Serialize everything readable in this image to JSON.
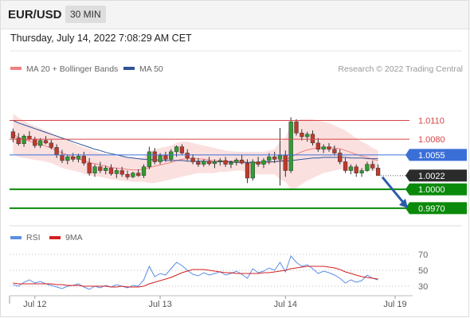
{
  "header": {
    "symbol": "EUR/USD",
    "interval": "30 MIN"
  },
  "datetime": "Thursday, July 14, 2022 7:08:29 AM CET",
  "legend": {
    "ma20": {
      "label": "MA 20 + Bollinger Bands",
      "color": "#f08080"
    },
    "ma50": {
      "label": "MA 50",
      "color": "#2f5597"
    },
    "credit": "Research © 2022 Trading Central"
  },
  "colors": {
    "up": "#2f9e2f",
    "down": "#c0392b",
    "band": "#fadada",
    "support": "#0a8a0a",
    "pivot": "#3b6fd8",
    "resistance": "#d64545",
    "current": "#2b2b2b",
    "arrow": "#2a5caa"
  },
  "chart_data": [
    {
      "type": "candlestick",
      "ylim": [
        0.9952,
        1.015
      ],
      "x_ticks": [
        "Jul 12",
        "Jul 13",
        "Jul 14",
        "Jul 19"
      ],
      "current_price": "1.0022",
      "levels": [
        {
          "label": "1.0110",
          "value": 1.011,
          "kind": "resistance"
        },
        {
          "label": "1.0080",
          "value": 1.008,
          "kind": "resistance"
        },
        {
          "label": "1.0055",
          "value": 1.0055,
          "kind": "pivot"
        },
        {
          "label": "1.0000",
          "value": 1.0,
          "kind": "support"
        },
        {
          "label": "0.9970",
          "value": 0.997,
          "kind": "support"
        }
      ],
      "forecast_arrow": {
        "from": 1.0022,
        "to": 0.997
      },
      "ohlc": [
        [
          1.0092,
          1.0097,
          1.0075,
          1.0082
        ],
        [
          1.0082,
          1.009,
          1.007,
          1.0073
        ],
        [
          1.0073,
          1.0088,
          1.0068,
          1.0085
        ],
        [
          1.0085,
          1.0093,
          1.0078,
          1.008
        ],
        [
          1.008,
          1.0084,
          1.0066,
          1.007
        ],
        [
          1.007,
          1.0082,
          1.0066,
          1.0078
        ],
        [
          1.0078,
          1.0085,
          1.0072,
          1.0074
        ],
        [
          1.0074,
          1.0079,
          1.0064,
          1.0067
        ],
        [
          1.0067,
          1.0072,
          1.005,
          1.0055
        ],
        [
          1.0055,
          1.0063,
          1.0042,
          1.0046
        ],
        [
          1.0046,
          1.0055,
          1.004,
          1.0052
        ],
        [
          1.0052,
          1.0058,
          1.0044,
          1.0048
        ],
        [
          1.0048,
          1.0057,
          1.0043,
          1.0053
        ],
        [
          1.0053,
          1.006,
          1.0038,
          1.0042
        ],
        [
          1.0042,
          1.005,
          1.0022,
          1.0026
        ],
        [
          1.0026,
          1.004,
          1.002,
          1.0036
        ],
        [
          1.0036,
          1.0044,
          1.0026,
          1.003
        ],
        [
          1.003,
          1.0038,
          1.0024,
          1.0034
        ],
        [
          1.0034,
          1.004,
          1.0022,
          1.0025
        ],
        [
          1.0025,
          1.0034,
          1.0018,
          1.003
        ],
        [
          1.003,
          1.0036,
          1.002,
          1.0024
        ],
        [
          1.0024,
          1.003,
          1.0016,
          1.002
        ],
        [
          1.002,
          1.0028,
          1.0018,
          1.0026
        ],
        [
          1.0026,
          1.0032,
          1.002,
          1.0022
        ],
        [
          1.0022,
          1.004,
          1.0018,
          1.0036
        ],
        [
          1.0036,
          1.0068,
          1.0032,
          1.006
        ],
        [
          1.006,
          1.0066,
          1.004,
          1.0044
        ],
        [
          1.0044,
          1.0058,
          1.004,
          1.0054
        ],
        [
          1.0054,
          1.006,
          1.0044,
          1.0048
        ],
        [
          1.0048,
          1.0064,
          1.0044,
          1.006
        ],
        [
          1.006,
          1.007,
          1.0052,
          1.0068
        ],
        [
          1.0068,
          1.0072,
          1.0055,
          1.0058
        ],
        [
          1.0058,
          1.0064,
          1.0046,
          1.005
        ],
        [
          1.005,
          1.0056,
          1.004,
          1.0044
        ],
        [
          1.0044,
          1.005,
          1.0036,
          1.004
        ],
        [
          1.004,
          1.0048,
          1.0036,
          1.0045
        ],
        [
          1.0045,
          1.0052,
          1.0038,
          1.0041
        ],
        [
          1.0041,
          1.0048,
          1.0034,
          1.0044
        ],
        [
          1.0044,
          1.005,
          1.0038,
          1.0046
        ],
        [
          1.0046,
          1.0052,
          1.0036,
          1.004
        ],
        [
          1.004,
          1.0046,
          1.0034,
          1.0043
        ],
        [
          1.0043,
          1.005,
          1.0038,
          1.0047
        ],
        [
          1.0047,
          1.0055,
          1.004,
          1.0042
        ],
        [
          1.0042,
          1.0048,
          1.001,
          1.0018
        ],
        [
          1.0018,
          1.0048,
          1.0014,
          1.0044
        ],
        [
          1.0044,
          1.0052,
          1.0036,
          1.004
        ],
        [
          1.004,
          1.005,
          1.0034,
          1.0046
        ],
        [
          1.0046,
          1.0058,
          1.004,
          1.0052
        ],
        [
          1.0052,
          1.006,
          1.0042,
          1.0048
        ],
        [
          1.0048,
          1.0098,
          1.0006,
          1.0054
        ],
        [
          1.0054,
          1.0062,
          1.002,
          1.003
        ],
        [
          1.003,
          1.0115,
          1.0026,
          1.0108
        ],
        [
          1.0108,
          1.0112,
          1.0086,
          1.009
        ],
        [
          1.009,
          1.0096,
          1.0078,
          1.0084
        ],
        [
          1.0084,
          1.0092,
          1.0076,
          1.0088
        ],
        [
          1.0088,
          1.0094,
          1.007,
          1.0074
        ],
        [
          1.0074,
          1.0082,
          1.006,
          1.0064
        ],
        [
          1.0064,
          1.0072,
          1.0058,
          1.0068
        ],
        [
          1.0068,
          1.0074,
          1.006,
          1.0064
        ],
        [
          1.0064,
          1.007,
          1.0054,
          1.0058
        ],
        [
          1.0058,
          1.0064,
          1.004,
          1.0044
        ],
        [
          1.0044,
          1.005,
          1.0026,
          1.003
        ],
        [
          1.003,
          1.004,
          1.0024,
          1.0036
        ],
        [
          1.0036,
          1.004,
          1.002,
          1.0026
        ],
        [
          1.0026,
          1.0034,
          1.002,
          1.003
        ],
        [
          1.003,
          1.0044,
          1.0028,
          1.004
        ],
        [
          1.004,
          1.0046,
          1.003,
          1.0034
        ],
        [
          1.0034,
          1.004,
          1.0022,
          1.0022
        ]
      ],
      "ma20": [
        1.0088,
        1.0083,
        1.008,
        1.0077,
        1.0074,
        1.0072,
        1.0069,
        1.0066,
        1.0062,
        1.0058,
        1.0055,
        1.0052,
        1.0049,
        1.0046,
        1.0043,
        1.0041,
        1.0039,
        1.0037,
        1.0035,
        1.0034,
        1.0033,
        1.0032,
        1.0031,
        1.0031,
        1.0032,
        1.0035,
        1.0037,
        1.0039,
        1.0041,
        1.0043,
        1.0046,
        1.0048,
        1.0049,
        1.0049,
        1.0049,
        1.0048,
        1.0047,
        1.0046,
        1.0046,
        1.0045,
        1.0045,
        1.0045,
        1.0045,
        1.0043,
        1.0042,
        1.0042,
        1.0042,
        1.0043,
        1.0044,
        1.0046,
        1.0047,
        1.0052,
        1.0056,
        1.006,
        1.0063,
        1.0065,
        1.0066,
        1.0067,
        1.0067,
        1.0066,
        1.0065,
        1.0062,
        1.0059,
        1.0056,
        1.0053,
        1.0051,
        1.0048,
        1.0046
      ],
      "bollinger_upper": [
        1.0121,
        1.0114,
        1.011,
        1.0105,
        1.0101,
        1.0098,
        1.0094,
        1.009,
        1.0086,
        1.0082,
        1.0078,
        1.0074,
        1.007,
        1.0067,
        1.0064,
        1.0061,
        1.0058,
        1.0056,
        1.0054,
        1.0053,
        1.0052,
        1.0051,
        1.005,
        1.005,
        1.0052,
        1.006,
        1.0064,
        1.0066,
        1.0068,
        1.007,
        1.0074,
        1.0076,
        1.0076,
        1.0074,
        1.0072,
        1.007,
        1.0068,
        1.0066,
        1.0064,
        1.0062,
        1.0061,
        1.006,
        1.006,
        1.006,
        1.006,
        1.006,
        1.006,
        1.0062,
        1.0064,
        1.0076,
        1.0082,
        1.0104,
        1.011,
        1.0112,
        1.0112,
        1.0112,
        1.011,
        1.0108,
        1.0106,
        1.0102,
        1.0098,
        1.0094,
        1.0088,
        1.0082,
        1.0076,
        1.0072,
        1.0066,
        1.0062
      ],
      "bollinger_lower": [
        1.0055,
        1.0052,
        1.005,
        1.0049,
        1.0047,
        1.0046,
        1.0044,
        1.0042,
        1.0038,
        1.0034,
        1.0032,
        1.003,
        1.0028,
        1.0025,
        1.0022,
        1.0021,
        1.002,
        1.0018,
        1.0016,
        1.0015,
        1.0014,
        1.0013,
        1.0012,
        1.0012,
        1.0012,
        1.001,
        1.001,
        1.0012,
        1.0014,
        1.0016,
        1.0018,
        1.002,
        1.0022,
        1.0024,
        1.0026,
        1.0026,
        1.0026,
        1.0026,
        1.0028,
        1.0028,
        1.0029,
        1.003,
        1.003,
        1.0026,
        1.0024,
        1.0024,
        1.0024,
        1.0024,
        1.0024,
        1.0016,
        1.0012,
        1.0,
        1.0002,
        1.0008,
        1.0014,
        1.0018,
        1.0022,
        1.0026,
        1.0028,
        1.003,
        1.0032,
        1.003,
        1.003,
        1.003,
        1.003,
        1.003,
        1.003,
        1.003
      ],
      "ma50": [
        1.011,
        1.0106,
        1.0103,
        1.01,
        1.0097,
        1.0094,
        1.0091,
        1.0088,
        1.0085,
        1.0082,
        1.0079,
        1.0076,
        1.0073,
        1.007,
        1.0067,
        1.0064,
        1.0062,
        1.0059,
        1.0057,
        1.0055,
        1.0053,
        1.0051,
        1.005,
        1.0049,
        1.0048,
        1.0048,
        1.0047,
        1.0047,
        1.0046,
        1.0046,
        1.0046,
        1.0046,
        1.0045,
        1.0045,
        1.0045,
        1.0045,
        1.0044,
        1.0044,
        1.0044,
        1.0044,
        1.0044,
        1.0043,
        1.0043,
        1.0043,
        1.0043,
        1.0043,
        1.0044,
        1.0044,
        1.0044,
        1.0045,
        1.0045,
        1.0046,
        1.0047,
        1.0048,
        1.0049,
        1.005,
        1.005,
        1.0051,
        1.0051,
        1.0051,
        1.0051,
        1.0051,
        1.005,
        1.005,
        1.005,
        1.0049,
        1.0049,
        1.0049
      ]
    },
    {
      "type": "line",
      "series_names": [
        "RSI",
        "9MA"
      ],
      "series_colors": [
        "#5b8ee6",
        "#d62020"
      ],
      "ylim": [
        20,
        78
      ],
      "y_ticks": [
        70,
        50,
        30
      ],
      "rsi": [
        32,
        30,
        35,
        38,
        34,
        36,
        33,
        31,
        29,
        27,
        30,
        31,
        33,
        29,
        26,
        30,
        28,
        31,
        29,
        32,
        30,
        28,
        31,
        30,
        38,
        55,
        42,
        46,
        44,
        52,
        60,
        56,
        50,
        45,
        43,
        47,
        44,
        46,
        48,
        44,
        46,
        49,
        45,
        40,
        52,
        47,
        49,
        53,
        50,
        60,
        48,
        68,
        60,
        55,
        57,
        52,
        46,
        49,
        47,
        44,
        40,
        34,
        38,
        35,
        37,
        44,
        40,
        38
      ],
      "ma9": [
        34,
        33,
        33,
        33,
        33,
        33,
        33,
        33,
        32,
        32,
        31,
        31,
        31,
        30,
        30,
        30,
        30,
        30,
        29,
        29,
        30,
        29,
        29,
        29,
        30,
        33,
        35,
        37,
        39,
        41,
        44,
        47,
        49,
        51,
        51,
        51,
        50,
        49,
        48,
        47,
        47,
        46,
        46,
        46,
        46,
        46,
        47,
        47,
        48,
        49,
        50,
        52,
        53,
        54,
        55,
        55,
        55,
        55,
        54,
        53,
        51,
        48,
        46,
        44,
        42,
        41,
        40,
        39
      ]
    }
  ]
}
